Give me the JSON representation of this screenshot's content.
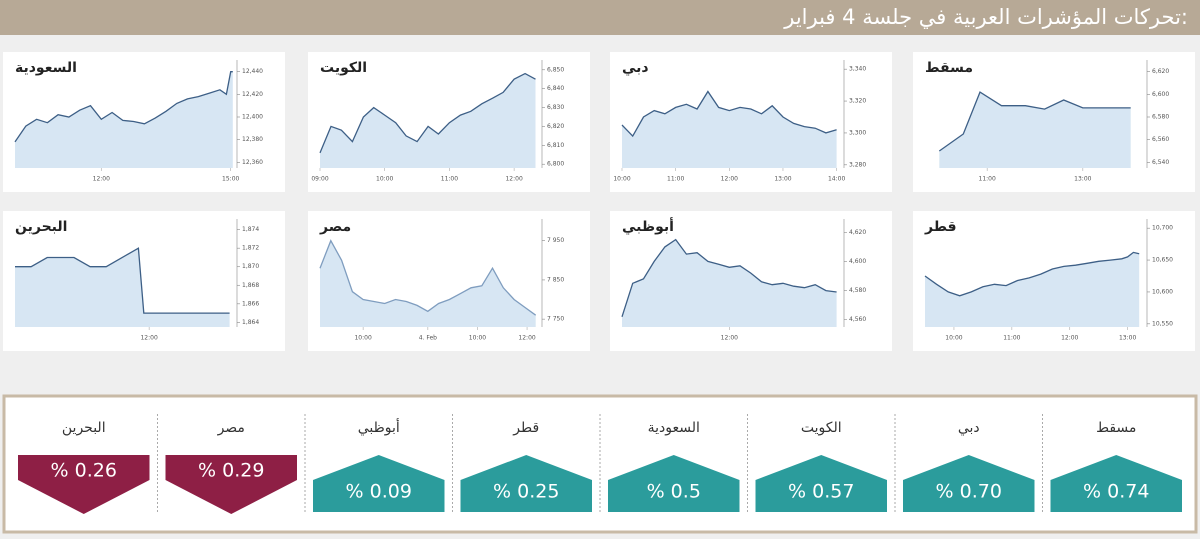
{
  "title": "تحركات المؤشرات العربية في جلسة 4 فبراير:",
  "chart_data": [
    {
      "type": "line",
      "title": "مسقط",
      "color": "#3d5f86",
      "area": true,
      "x": [
        10,
        10.5,
        10.85,
        11.3,
        11.8,
        12.2,
        12.6,
        13.0,
        13.5,
        14.0
      ],
      "values": [
        6550,
        6565,
        6602,
        6590,
        6590,
        6587,
        6595,
        6588,
        6588,
        6588
      ],
      "xlim": [
        9.7,
        14.3
      ],
      "xticks": [
        {
          "value": 11,
          "label": "11:00"
        },
        {
          "value": 13,
          "label": "13:00"
        }
      ],
      "ylim": [
        6535,
        6625
      ],
      "yticks": [
        {
          "value": 6540,
          "label": "6,540"
        },
        {
          "value": 6560,
          "label": "6,560"
        },
        {
          "value": 6580,
          "label": "6,580"
        },
        {
          "value": 6600,
          "label": "6,600"
        },
        {
          "value": 6620,
          "label": "6,620"
        }
      ]
    },
    {
      "type": "line",
      "title": "دبي",
      "color": "#3d5f86",
      "area": true,
      "x": [
        10,
        10.2,
        10.4,
        10.6,
        10.8,
        11,
        11.2,
        11.4,
        11.6,
        11.8,
        12,
        12.2,
        12.4,
        12.6,
        12.8,
        13,
        13.2,
        13.4,
        13.6,
        13.8,
        14
      ],
      "values": [
        3305,
        3298,
        3310,
        3314,
        3312,
        3316,
        3318,
        3315,
        3326,
        3316,
        3314,
        3316,
        3315,
        3312,
        3317,
        3310,
        3306,
        3304,
        3303,
        3300,
        3302
      ],
      "xlim": [
        10,
        14.1
      ],
      "xticks": [
        {
          "value": 10,
          "label": "10:00"
        },
        {
          "value": 11,
          "label": "11:00"
        },
        {
          "value": 12,
          "label": "12:00"
        },
        {
          "value": 13,
          "label": "13:00"
        },
        {
          "value": 14,
          "label": "14:00"
        }
      ],
      "ylim": [
        3278,
        3342
      ],
      "yticks": [
        {
          "value": 3280,
          "label": "3,280"
        },
        {
          "value": 3300,
          "label": "3,300"
        },
        {
          "value": 3320,
          "label": "3,320"
        },
        {
          "value": 3340,
          "label": "3,340"
        }
      ]
    },
    {
      "type": "line",
      "title": "الكويت",
      "color": "#3d5f86",
      "area": true,
      "x": [
        9,
        9.17,
        9.33,
        9.5,
        9.67,
        9.83,
        10,
        10.17,
        10.33,
        10.5,
        10.67,
        10.83,
        11,
        11.17,
        11.33,
        11.5,
        11.67,
        11.83,
        12,
        12.17,
        12.33
      ],
      "values": [
        6806,
        6820,
        6818,
        6812,
        6825,
        6830,
        6826,
        6822,
        6815,
        6812,
        6820,
        6816,
        6822,
        6826,
        6828,
        6832,
        6835,
        6838,
        6845,
        6848,
        6845
      ],
      "xlim": [
        9,
        12.4
      ],
      "xticks": [
        {
          "value": 9,
          "label": "09:00"
        },
        {
          "value": 10,
          "label": "10:00"
        },
        {
          "value": 11,
          "label": "11:00"
        },
        {
          "value": 12,
          "label": "12:00"
        }
      ],
      "ylim": [
        6798,
        6852
      ],
      "yticks": [
        {
          "value": 6800,
          "label": "6,800"
        },
        {
          "value": 6810,
          "label": "6,810"
        },
        {
          "value": 6820,
          "label": "6,820"
        },
        {
          "value": 6830,
          "label": "6,830"
        },
        {
          "value": 6840,
          "label": "6,840"
        },
        {
          "value": 6850,
          "label": "6,850"
        }
      ]
    },
    {
      "type": "line",
      "title": "السعودية",
      "color": "#3d5f86",
      "area": true,
      "x": [
        10,
        10.25,
        10.5,
        10.75,
        11,
        11.25,
        11.5,
        11.75,
        12,
        12.25,
        12.5,
        12.75,
        13,
        13.25,
        13.5,
        13.75,
        14,
        14.25,
        14.5,
        14.75,
        14.9,
        15,
        15.05
      ],
      "values": [
        12378,
        12392,
        12398,
        12395,
        12402,
        12400,
        12406,
        12410,
        12398,
        12404,
        12397,
        12396,
        12394,
        12399,
        12405,
        12412,
        12416,
        12418,
        12421,
        12424,
        12420,
        12440,
        12440
      ],
      "xlim": [
        10,
        15.1
      ],
      "xticks": [
        {
          "value": 12,
          "label": "12:00"
        },
        {
          "value": 15,
          "label": "15:00"
        }
      ],
      "ylim": [
        12355,
        12445
      ],
      "yticks": [
        {
          "value": 12360,
          "label": "12,360"
        },
        {
          "value": 12380,
          "label": "12,380"
        },
        {
          "value": 12400,
          "label": "12,400"
        },
        {
          "value": 12420,
          "label": "12,420"
        },
        {
          "value": 12440,
          "label": "12,440"
        }
      ]
    },
    {
      "type": "line",
      "title": "قطر",
      "color": "#3d5f86",
      "area": true,
      "x": [
        9.5,
        9.7,
        9.9,
        10.1,
        10.3,
        10.5,
        10.7,
        10.9,
        11.1,
        11.3,
        11.5,
        11.7,
        11.9,
        12.1,
        12.3,
        12.5,
        12.7,
        12.9,
        13.0,
        13.1,
        13.2
      ],
      "values": [
        10625,
        10612,
        10600,
        10594,
        10600,
        10608,
        10612,
        10610,
        10618,
        10622,
        10628,
        10636,
        10640,
        10642,
        10645,
        10648,
        10650,
        10652,
        10655,
        10662,
        10660
      ],
      "xlim": [
        9.5,
        13.3
      ],
      "xticks": [
        {
          "value": 10,
          "label": "10:00"
        },
        {
          "value": 11,
          "label": "11:00"
        },
        {
          "value": 12,
          "label": "12:00"
        },
        {
          "value": 13,
          "label": "13:00"
        }
      ],
      "ylim": [
        10545,
        10705
      ],
      "yticks": [
        {
          "value": 10550,
          "label": "10,550"
        },
        {
          "value": 10600,
          "label": "10,600"
        },
        {
          "value": 10650,
          "label": "10,650"
        },
        {
          "value": 10700,
          "label": "10,700"
        }
      ]
    },
    {
      "type": "line",
      "title": "أبوظبي",
      "color": "#3d5f86",
      "area": true,
      "x": [
        10,
        10.2,
        10.4,
        10.6,
        10.8,
        11,
        11.2,
        11.4,
        11.6,
        11.8,
        12,
        12.2,
        12.4,
        12.6,
        12.8,
        13,
        13.2,
        13.4,
        13.6,
        13.8,
        14
      ],
      "values": [
        4562,
        4585,
        4588,
        4600,
        4610,
        4615,
        4605,
        4606,
        4600,
        4598,
        4596,
        4597,
        4592,
        4586,
        4584,
        4585,
        4583,
        4582,
        4584,
        4580,
        4579
      ],
      "xlim": [
        10,
        14.1
      ],
      "xticks": [
        {
          "value": 12,
          "label": "12:00"
        }
      ],
      "ylim": [
        4555,
        4625
      ],
      "yticks": [
        {
          "value": 4560,
          "label": "4,560"
        },
        {
          "value": 4580,
          "label": "4,580"
        },
        {
          "value": 4600,
          "label": "4,600"
        },
        {
          "value": 4620,
          "label": "4,620"
        }
      ]
    },
    {
      "type": "line",
      "title": "مصر",
      "color": "#7f9dbf",
      "area": true,
      "x": [
        0,
        0.5,
        1,
        1.5,
        2,
        2.5,
        3,
        3.5,
        4,
        4.5,
        5,
        5.5,
        6,
        6.5,
        7,
        7.5,
        8,
        8.5,
        9,
        9.5,
        10
      ],
      "values": [
        7880,
        7950,
        7900,
        7820,
        7800,
        7795,
        7790,
        7800,
        7795,
        7785,
        7770,
        7790,
        7800,
        7815,
        7830,
        7835,
        7880,
        7830,
        7800,
        7780,
        7760
      ],
      "xlim": [
        0,
        10.2
      ],
      "xticks": [
        {
          "value": 2,
          "label": "10:00"
        },
        {
          "value": 5,
          "label": "4. Feb"
        },
        {
          "value": 7.3,
          "label": "10:00"
        },
        {
          "value": 9.6,
          "label": "12:00"
        }
      ],
      "ylim": [
        7730,
        7990
      ],
      "yticks": [
        {
          "value": 7750,
          "label": "7 750"
        },
        {
          "value": 7850,
          "label": "7 850"
        },
        {
          "value": 7950,
          "label": "7 950"
        }
      ]
    },
    {
      "type": "line",
      "title": "البحرين",
      "color": "#3d5f86",
      "area": true,
      "x": [
        9.5,
        9.8,
        10.1,
        10.6,
        10.9,
        11.2,
        11.8,
        11.9,
        13.5
      ],
      "values": [
        1870,
        1870,
        1871,
        1871,
        1870,
        1870,
        1872,
        1865,
        1865
      ],
      "xlim": [
        9.5,
        13.6
      ],
      "xticks": [
        {
          "value": 12,
          "label": "12:00"
        }
      ],
      "ylim": [
        1863.5,
        1874.5
      ],
      "yticks": [
        {
          "value": 1864,
          "label": "1,864"
        },
        {
          "value": 1866,
          "label": "1,866"
        },
        {
          "value": 1868,
          "label": "1,868"
        },
        {
          "value": 1870,
          "label": "1,870"
        },
        {
          "value": 1872,
          "label": "1,872"
        },
        {
          "value": 1874,
          "label": "1,874"
        }
      ]
    }
  ],
  "summary": {
    "items": [
      {
        "name": "مسقط",
        "value": 0.74,
        "label": "% 0.74",
        "color": "#2b9c9c",
        "trend": "up"
      },
      {
        "name": "دبي",
        "value": 0.7,
        "label": "% 0.70",
        "color": "#2b9c9c",
        "trend": "up"
      },
      {
        "name": "الكويت",
        "value": 0.57,
        "label": "% 0.57",
        "color": "#2b9c9c",
        "trend": "up"
      },
      {
        "name": "السعودية",
        "value": 0.5,
        "label": "% 0.5",
        "color": "#2b9c9c",
        "trend": "up"
      },
      {
        "name": "قطر",
        "value": 0.25,
        "label": "% 0.25",
        "color": "#2b9c9c",
        "trend": "up"
      },
      {
        "name": "أبوظبي",
        "value": 0.09,
        "label": "% 0.09",
        "color": "#2b9c9c",
        "trend": "up"
      },
      {
        "name": "مصر",
        "value": 0.29,
        "label": "% 0.29",
        "color": "#8e1f45",
        "trend": "down"
      },
      {
        "name": "البحرين",
        "value": 0.26,
        "label": "% 0.26",
        "color": "#8e1f45",
        "trend": "down"
      }
    ]
  }
}
